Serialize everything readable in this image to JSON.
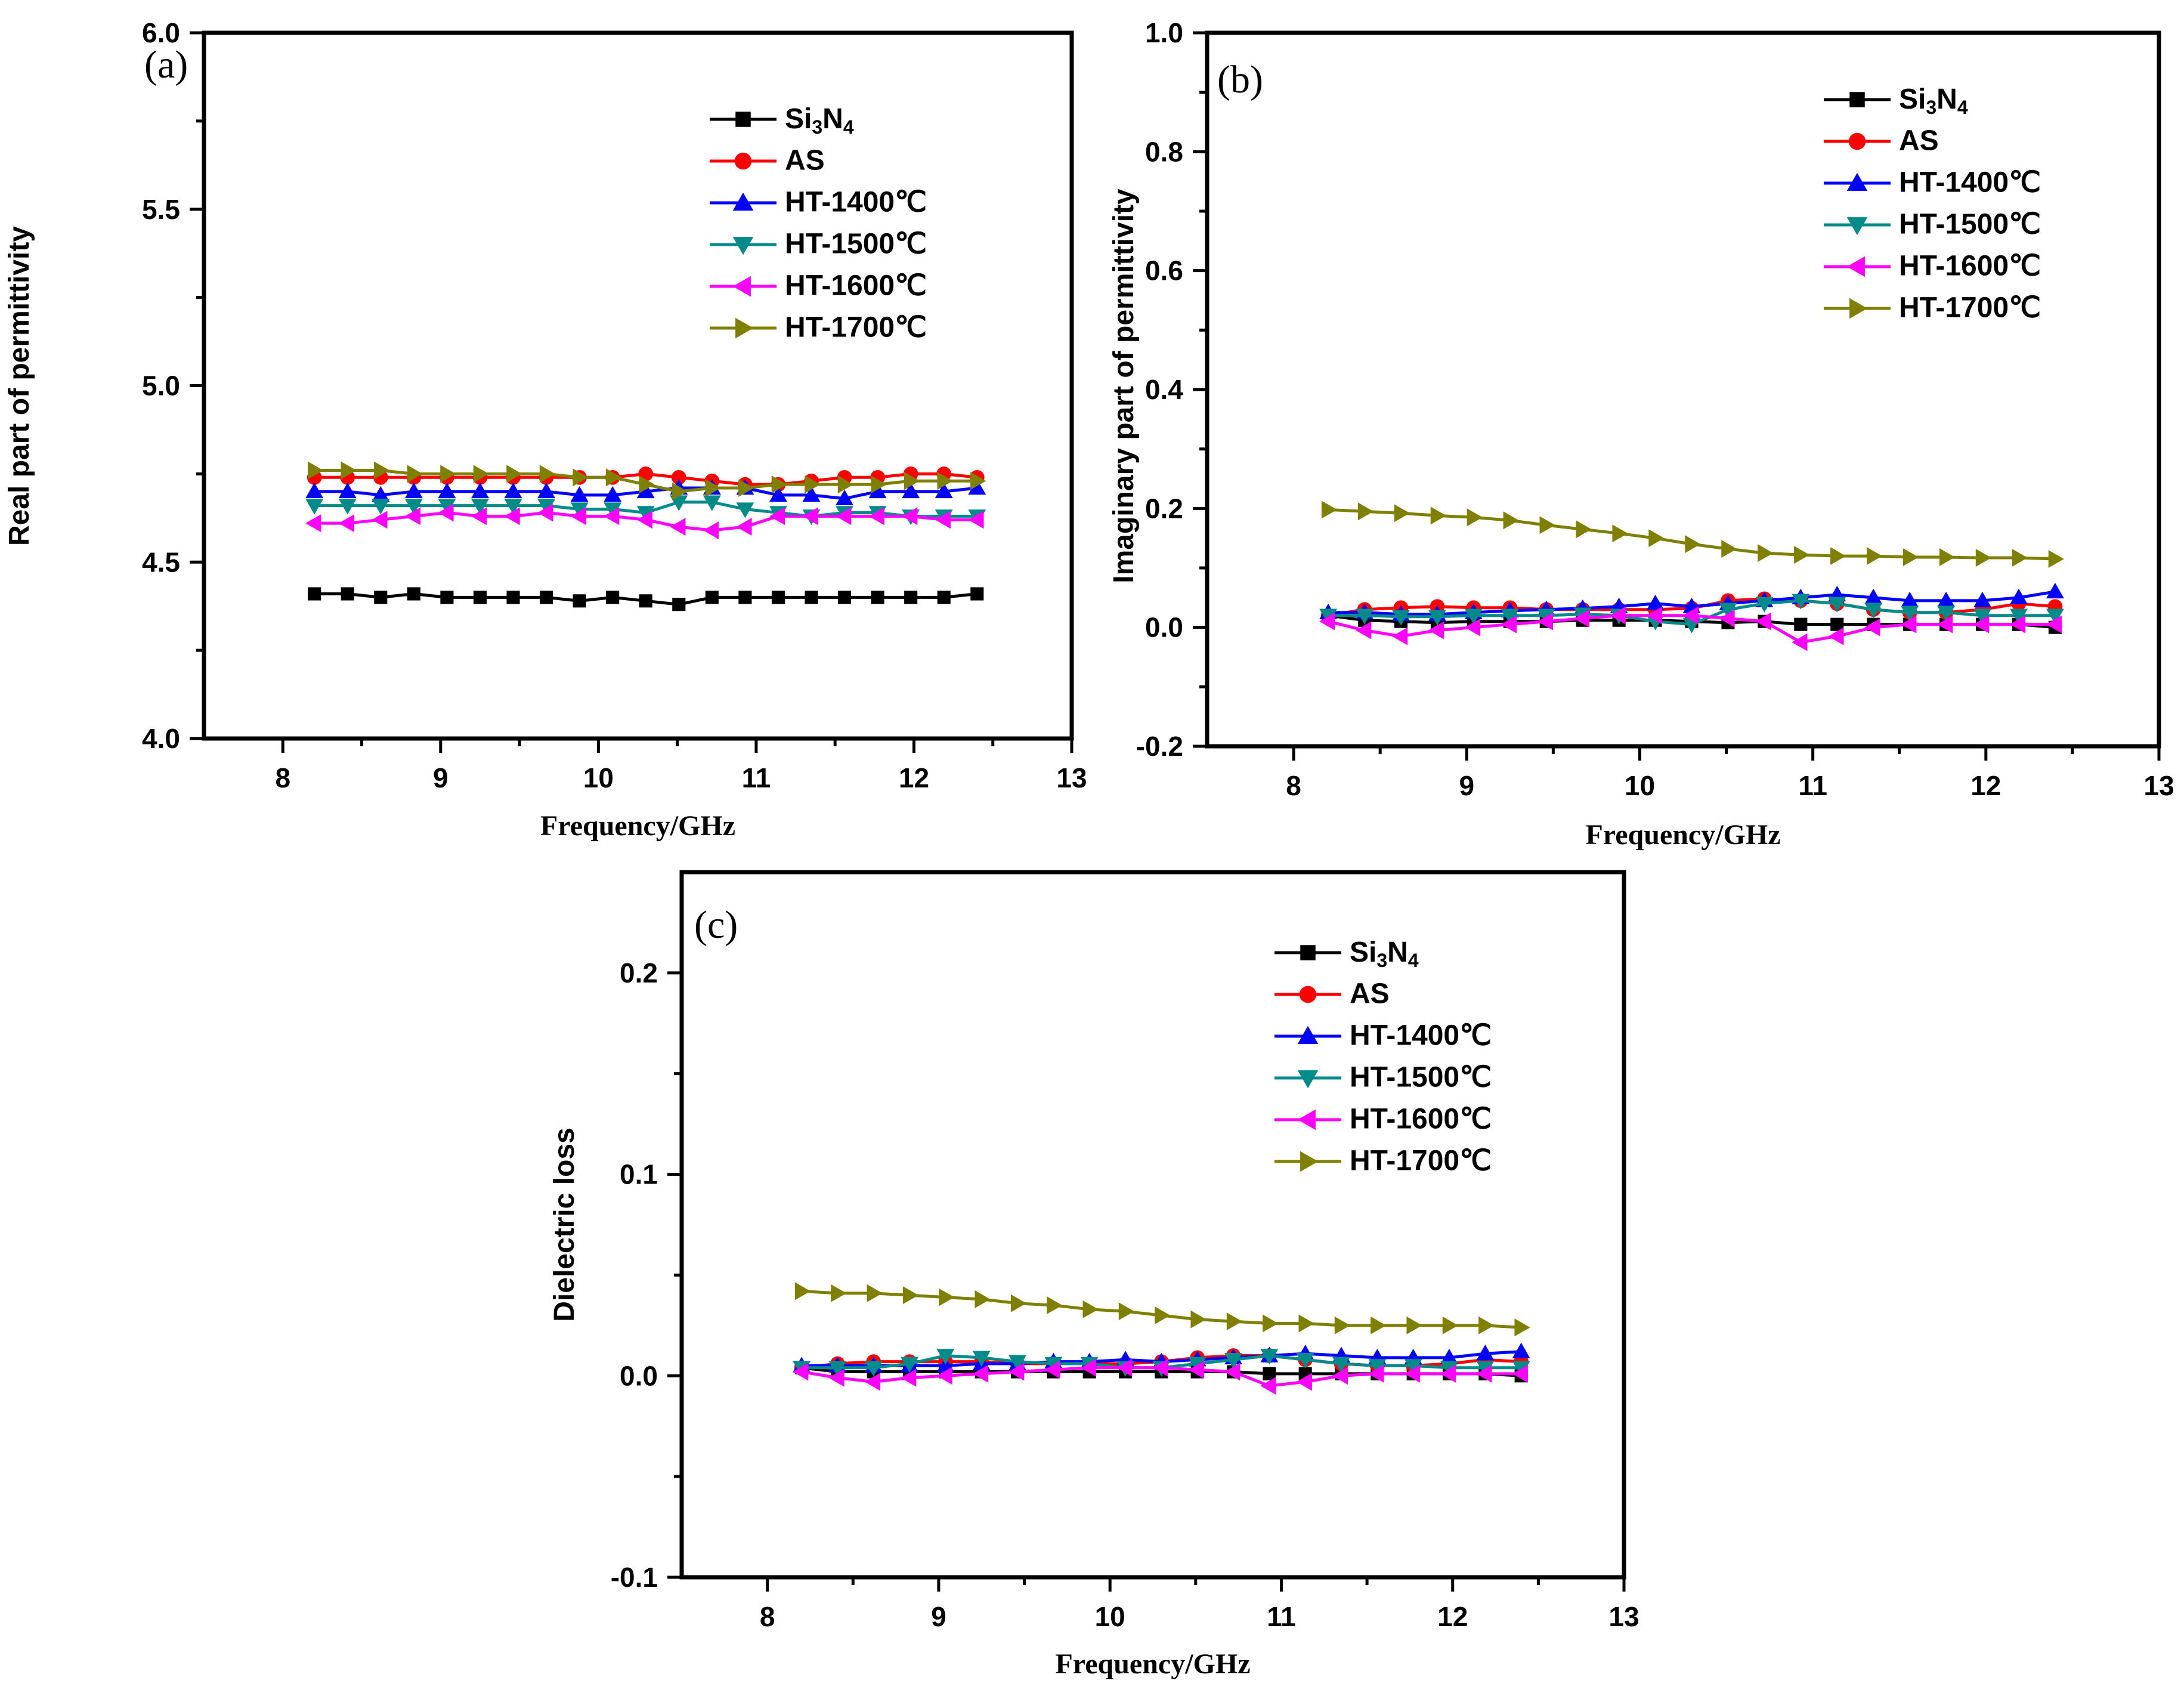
{
  "figure": {
    "x_ticks": [
      "8",
      "9",
      "10",
      "11",
      "12",
      "13"
    ],
    "legend_labels": [
      "Si3N4",
      "AS",
      "HT-1400℃",
      "HT-1500℃",
      "HT-1600℃",
      "HT-1700℃"
    ]
  },
  "chart_data": [
    {
      "type": "line",
      "panel_label": "(a)",
      "title": "",
      "xlabel": "Frequency/GHz",
      "ylabel": "Real  part of permittivity",
      "xlim": [
        7.5,
        13
      ],
      "ylim": [
        4.0,
        6.0
      ],
      "xticks": [
        8,
        9,
        10,
        11,
        12,
        13
      ],
      "yticks": [
        4.0,
        4.5,
        5.0,
        5.5,
        6.0
      ],
      "ytick_labels": [
        "4.0",
        "4.5",
        "5.0",
        "5.5",
        "6.0"
      ],
      "x": [
        8.2,
        8.41,
        8.62,
        8.83,
        9.04,
        9.25,
        9.46,
        9.67,
        9.88,
        10.09,
        10.3,
        10.51,
        10.72,
        10.93,
        11.14,
        11.35,
        11.56,
        11.77,
        11.98,
        12.19,
        12.4
      ],
      "series": [
        {
          "name": "Si3N4",
          "color": "#000000",
          "marker": "square",
          "values": [
            4.41,
            4.41,
            4.4,
            4.41,
            4.4,
            4.4,
            4.4,
            4.4,
            4.39,
            4.4,
            4.39,
            4.38,
            4.4,
            4.4,
            4.4,
            4.4,
            4.4,
            4.4,
            4.4,
            4.4,
            4.41
          ]
        },
        {
          "name": "AS",
          "color": "#ff0000",
          "marker": "circle",
          "values": [
            4.74,
            4.74,
            4.74,
            4.74,
            4.74,
            4.74,
            4.74,
            4.74,
            4.74,
            4.74,
            4.75,
            4.74,
            4.73,
            4.72,
            4.72,
            4.73,
            4.74,
            4.74,
            4.75,
            4.75,
            4.74
          ]
        },
        {
          "name": "HT-1400℃",
          "color": "#0000ff",
          "marker": "triangle-up",
          "values": [
            4.7,
            4.7,
            4.69,
            4.7,
            4.7,
            4.7,
            4.7,
            4.7,
            4.69,
            4.69,
            4.7,
            4.71,
            4.71,
            4.71,
            4.69,
            4.69,
            4.68,
            4.7,
            4.7,
            4.7,
            4.71
          ]
        },
        {
          "name": "HT-1500℃",
          "color": "#008b8b",
          "marker": "triangle-down",
          "values": [
            4.66,
            4.66,
            4.66,
            4.66,
            4.66,
            4.66,
            4.66,
            4.66,
            4.65,
            4.65,
            4.64,
            4.67,
            4.67,
            4.65,
            4.64,
            4.63,
            4.64,
            4.64,
            4.63,
            4.63,
            4.63
          ]
        },
        {
          "name": "HT-1600℃",
          "color": "#ff00ff",
          "marker": "triangle-left",
          "values": [
            4.61,
            4.61,
            4.62,
            4.63,
            4.64,
            4.63,
            4.63,
            4.64,
            4.63,
            4.63,
            4.62,
            4.6,
            4.59,
            4.6,
            4.63,
            4.63,
            4.63,
            4.63,
            4.63,
            4.62,
            4.62
          ]
        },
        {
          "name": "HT-1700℃",
          "color": "#808000",
          "marker": "triangle-right",
          "values": [
            4.76,
            4.76,
            4.76,
            4.75,
            4.75,
            4.75,
            4.75,
            4.75,
            4.74,
            4.74,
            4.72,
            4.7,
            4.71,
            4.71,
            4.72,
            4.72,
            4.72,
            4.72,
            4.73,
            4.73,
            4.73
          ]
        }
      ]
    },
    {
      "type": "line",
      "panel_label": "(b)",
      "title": "",
      "xlabel": "Frequency/GHz",
      "ylabel": "Imaginary  part of permittivity",
      "xlim": [
        7.5,
        13
      ],
      "ylim": [
        -0.2,
        1.0
      ],
      "xticks": [
        8,
        9,
        10,
        11,
        12,
        13
      ],
      "yticks": [
        -0.2,
        0.0,
        0.2,
        0.4,
        0.6,
        0.8,
        1.0
      ],
      "ytick_labels": [
        "-0.2",
        "0.0",
        "0.2",
        "0.4",
        "0.6",
        "0.8",
        "1.0"
      ],
      "x": [
        8.2,
        8.41,
        8.62,
        8.83,
        9.04,
        9.25,
        9.46,
        9.67,
        9.88,
        10.09,
        10.3,
        10.51,
        10.72,
        10.93,
        11.14,
        11.35,
        11.56,
        11.77,
        11.98,
        12.19,
        12.4
      ],
      "series": [
        {
          "name": "Si3N4",
          "color": "#000000",
          "marker": "square",
          "values": [
            0.02,
            0.012,
            0.01,
            0.008,
            0.01,
            0.01,
            0.01,
            0.012,
            0.012,
            0.012,
            0.01,
            0.008,
            0.01,
            0.005,
            0.005,
            0.005,
            0.005,
            0.005,
            0.005,
            0.005,
            0.0
          ]
        },
        {
          "name": "AS",
          "color": "#ff0000",
          "marker": "circle",
          "values": [
            0.02,
            0.03,
            0.033,
            0.035,
            0.033,
            0.033,
            0.03,
            0.03,
            0.03,
            0.03,
            0.032,
            0.045,
            0.048,
            0.045,
            0.04,
            0.03,
            0.025,
            0.025,
            0.03,
            0.04,
            0.035
          ]
        },
        {
          "name": "HT-1400℃",
          "color": "#0000ff",
          "marker": "triangle-up",
          "values": [
            0.025,
            0.025,
            0.022,
            0.022,
            0.025,
            0.028,
            0.03,
            0.032,
            0.035,
            0.04,
            0.035,
            0.04,
            0.045,
            0.05,
            0.055,
            0.05,
            0.045,
            0.045,
            0.045,
            0.05,
            0.06
          ]
        },
        {
          "name": "HT-1500℃",
          "color": "#008b8b",
          "marker": "triangle-down",
          "values": [
            0.02,
            0.02,
            0.018,
            0.018,
            0.02,
            0.02,
            0.02,
            0.022,
            0.02,
            0.01,
            0.005,
            0.03,
            0.04,
            0.045,
            0.04,
            0.03,
            0.025,
            0.025,
            0.02,
            0.02,
            0.02
          ]
        },
        {
          "name": "HT-1600℃",
          "color": "#ff00ff",
          "marker": "triangle-left",
          "values": [
            0.01,
            -0.005,
            -0.015,
            -0.005,
            0.0,
            0.005,
            0.01,
            0.015,
            0.02,
            0.02,
            0.02,
            0.015,
            0.01,
            -0.025,
            -0.015,
            0.0,
            0.005,
            0.005,
            0.005,
            0.005,
            0.005
          ]
        },
        {
          "name": "HT-1700℃",
          "color": "#808000",
          "marker": "triangle-right",
          "values": [
            0.198,
            0.195,
            0.192,
            0.188,
            0.185,
            0.18,
            0.172,
            0.165,
            0.158,
            0.15,
            0.14,
            0.132,
            0.125,
            0.122,
            0.12,
            0.12,
            0.118,
            0.118,
            0.117,
            0.117,
            0.115
          ]
        }
      ]
    },
    {
      "type": "line",
      "panel_label": "(c)",
      "title": "",
      "xlabel": "Frequency/GHz",
      "ylabel": "Dielectric loss",
      "xlim": [
        7.5,
        13
      ],
      "ylim": [
        -0.1,
        0.25
      ],
      "xticks": [
        8,
        9,
        10,
        11,
        12,
        13
      ],
      "yticks": [
        -0.1,
        0.0,
        0.1,
        0.2
      ],
      "ytick_labels": [
        "-0.1",
        "0.0",
        "0.1",
        "0.2"
      ],
      "x": [
        8.2,
        8.41,
        8.62,
        8.83,
        9.04,
        9.25,
        9.46,
        9.67,
        9.88,
        10.09,
        10.3,
        10.51,
        10.72,
        10.93,
        11.14,
        11.35,
        11.56,
        11.77,
        11.98,
        12.19,
        12.4
      ],
      "series": [
        {
          "name": "Si3N4",
          "color": "#000000",
          "marker": "square",
          "values": [
            0.004,
            0.002,
            0.002,
            0.002,
            0.002,
            0.002,
            0.002,
            0.002,
            0.002,
            0.002,
            0.002,
            0.002,
            0.002,
            0.001,
            0.001,
            0.001,
            0.001,
            0.001,
            0.001,
            0.001,
            0.0
          ]
        },
        {
          "name": "AS",
          "color": "#ff0000",
          "marker": "circle",
          "values": [
            0.004,
            0.006,
            0.007,
            0.007,
            0.007,
            0.007,
            0.006,
            0.006,
            0.006,
            0.006,
            0.007,
            0.009,
            0.01,
            0.01,
            0.008,
            0.006,
            0.005,
            0.005,
            0.006,
            0.008,
            0.007
          ]
        },
        {
          "name": "HT-1400℃",
          "color": "#0000ff",
          "marker": "triangle-up",
          "values": [
            0.005,
            0.005,
            0.005,
            0.005,
            0.005,
            0.006,
            0.006,
            0.007,
            0.007,
            0.008,
            0.007,
            0.008,
            0.009,
            0.01,
            0.011,
            0.01,
            0.009,
            0.009,
            0.009,
            0.011,
            0.012
          ]
        },
        {
          "name": "HT-1500℃",
          "color": "#008b8b",
          "marker": "triangle-down",
          "values": [
            0.004,
            0.004,
            0.004,
            0.006,
            0.01,
            0.009,
            0.007,
            0.006,
            0.006,
            0.004,
            0.004,
            0.006,
            0.008,
            0.01,
            0.008,
            0.006,
            0.005,
            0.005,
            0.004,
            0.004,
            0.004
          ]
        },
        {
          "name": "HT-1600℃",
          "color": "#ff00ff",
          "marker": "triangle-left",
          "values": [
            0.002,
            -0.001,
            -0.003,
            -0.001,
            0.0,
            0.001,
            0.002,
            0.003,
            0.004,
            0.004,
            0.004,
            0.003,
            0.002,
            -0.005,
            -0.003,
            0.0,
            0.001,
            0.001,
            0.001,
            0.001,
            0.001
          ]
        },
        {
          "name": "HT-1700℃",
          "color": "#808000",
          "marker": "triangle-right",
          "values": [
            0.042,
            0.041,
            0.041,
            0.04,
            0.039,
            0.038,
            0.036,
            0.035,
            0.033,
            0.032,
            0.03,
            0.028,
            0.027,
            0.026,
            0.026,
            0.025,
            0.025,
            0.025,
            0.025,
            0.025,
            0.024
          ]
        }
      ]
    }
  ]
}
